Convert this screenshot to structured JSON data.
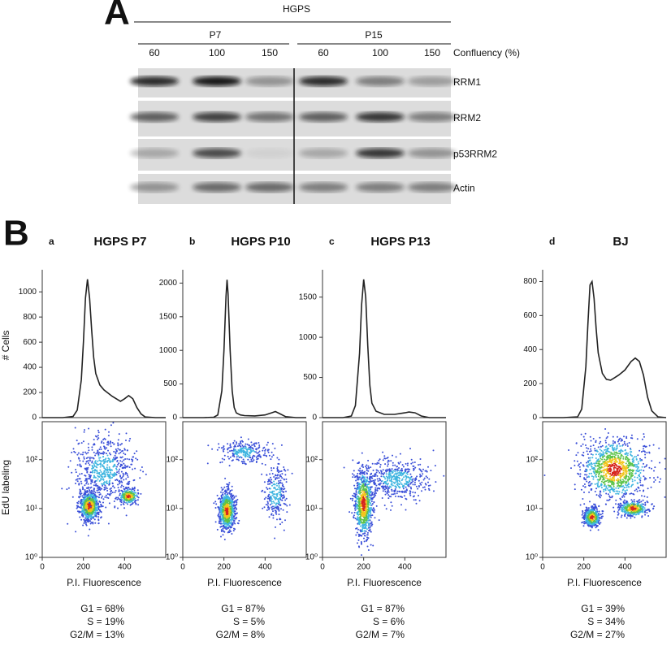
{
  "panel_a": {
    "label": "A",
    "group": "HGPS",
    "passages": [
      "P7",
      "P15"
    ],
    "confluency": [
      "60",
      "100",
      "150",
      "60",
      "100",
      "150"
    ],
    "confluency_label": "Confluency (%)",
    "blots": [
      "RRM1",
      "RRM2",
      "p53RRM2",
      "Actin"
    ]
  },
  "panel_b": {
    "label": "B"
  },
  "chart_data": [
    {
      "type": "line",
      "panel": "a",
      "title": "HGPS P7",
      "ylabel": "# Cells",
      "scatter_ylabel": "EdU labeling",
      "x": [
        0,
        100,
        150,
        170,
        190,
        200,
        210,
        220,
        230,
        240,
        250,
        260,
        280,
        300,
        340,
        380,
        400,
        420,
        440,
        460,
        480,
        500,
        550,
        600
      ],
      "values": [
        0,
        0,
        10,
        60,
        300,
        600,
        950,
        1100,
        950,
        700,
        480,
        350,
        260,
        220,
        170,
        130,
        150,
        175,
        150,
        80,
        30,
        5,
        0,
        0
      ],
      "color": "#222222",
      "xlim": [
        0,
        600
      ],
      "xticks": [
        0,
        200,
        400
      ],
      "ylim": [
        0,
        1150
      ],
      "yticks": [
        0,
        200,
        400,
        600,
        800,
        1000
      ],
      "scatter_ylim": [
        1,
        600
      ],
      "scatter_yticks": [
        {
          "value": 1,
          "label": "10⁰"
        },
        {
          "value": 10,
          "label": "10¹"
        },
        {
          "value": 100,
          "label": "10²"
        }
      ],
      "xlabel": "P.I. Fluorescence",
      "stats": [
        "G1 = 68%",
        "S = 19%",
        "G2/M = 13%"
      ]
    },
    {
      "type": "line",
      "panel": "b",
      "title": "HGPS P10",
      "x": [
        0,
        100,
        150,
        170,
        190,
        200,
        210,
        215,
        220,
        230,
        240,
        250,
        260,
        280,
        300,
        350,
        400,
        430,
        450,
        470,
        500,
        550,
        600
      ],
      "values": [
        0,
        0,
        5,
        40,
        400,
        1000,
        1800,
        2050,
        1850,
        1000,
        400,
        150,
        70,
        40,
        30,
        25,
        40,
        70,
        90,
        60,
        15,
        0,
        0
      ],
      "color": "#222222",
      "xlim": [
        0,
        600
      ],
      "xticks": [
        0,
        200,
        400
      ],
      "ylim": [
        0,
        2150
      ],
      "yticks": [
        0,
        500,
        1000,
        1500,
        2000
      ],
      "scatter_ylim": [
        1,
        600
      ],
      "scatter_yticks": [
        {
          "value": 1,
          "label": "10⁰"
        },
        {
          "value": 10,
          "label": "10¹"
        },
        {
          "value": 100,
          "label": "10²"
        }
      ],
      "xlabel": "P.I. Fluorescence",
      "stats": [
        "G1 = 87%",
        "S = 5%",
        "G2/M = 8%"
      ]
    },
    {
      "type": "line",
      "panel": "c",
      "title": "HGPS P13",
      "x": [
        0,
        100,
        140,
        160,
        180,
        190,
        200,
        210,
        220,
        230,
        240,
        260,
        300,
        350,
        400,
        420,
        450,
        480,
        520,
        600
      ],
      "values": [
        0,
        0,
        20,
        150,
        800,
        1400,
        1720,
        1500,
        900,
        400,
        180,
        80,
        40,
        40,
        60,
        70,
        60,
        20,
        0,
        0
      ],
      "color": "#222222",
      "xlim": [
        0,
        600
      ],
      "xticks": [
        0,
        200,
        400
      ],
      "ylim": [
        0,
        1800
      ],
      "yticks": [
        0,
        500,
        1000,
        1500
      ],
      "scatter_ylim": [
        1,
        600
      ],
      "scatter_yticks": [
        {
          "value": 1,
          "label": "10⁰"
        },
        {
          "value": 10,
          "label": "10¹"
        },
        {
          "value": 100,
          "label": "10²"
        }
      ],
      "xlabel": "P.I. Fluorescence",
      "stats": [
        "G1 = 87%",
        "S = 6%",
        "G2/M = 7%"
      ]
    },
    {
      "type": "line",
      "panel": "d",
      "title": "BJ",
      "x": [
        0,
        100,
        170,
        190,
        210,
        220,
        230,
        240,
        250,
        260,
        270,
        290,
        310,
        330,
        350,
        370,
        400,
        430,
        450,
        470,
        490,
        510,
        530,
        560,
        600
      ],
      "values": [
        0,
        0,
        5,
        50,
        300,
        550,
        780,
        800,
        700,
        520,
        380,
        260,
        225,
        220,
        235,
        250,
        280,
        330,
        350,
        330,
        250,
        120,
        40,
        5,
        0
      ],
      "color": "#222222",
      "xlim": [
        0,
        600
      ],
      "xticks": [
        0,
        200,
        400
      ],
      "ylim": [
        0,
        850
      ],
      "yticks": [
        0,
        200,
        400,
        600,
        800
      ],
      "scatter_ylim": [
        1,
        600
      ],
      "scatter_yticks": [
        {
          "value": 1,
          "label": "10⁰"
        },
        {
          "value": 10,
          "label": "10¹"
        },
        {
          "value": 100,
          "label": "10²"
        }
      ],
      "xlabel": "P.I. Fluorescence",
      "stats": [
        "G1 = 39%",
        "S = 34%",
        "G2/M = 27%"
      ]
    }
  ]
}
